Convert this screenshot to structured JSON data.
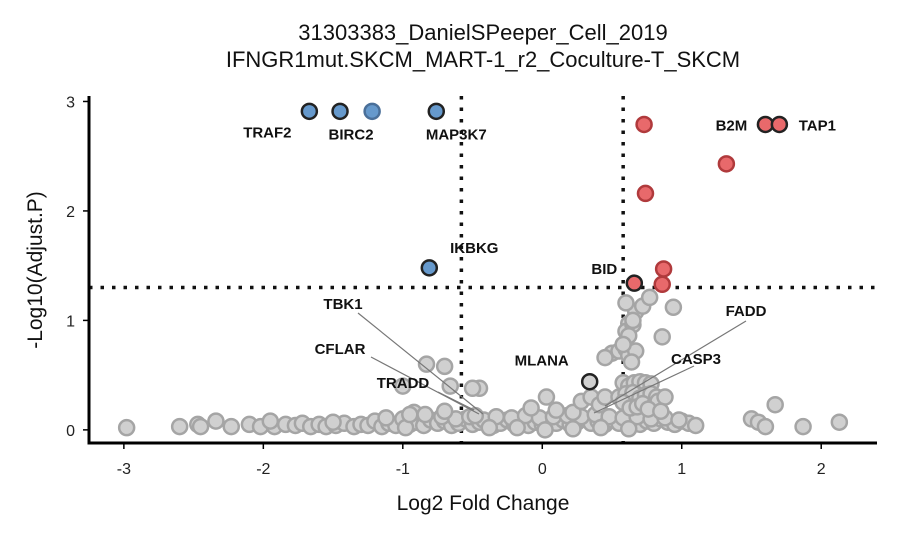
{
  "chart_data": {
    "type": "scatter",
    "title": [
      "31303383_DanielSPeeper_Cell_2019",
      "IFNGR1mut.SKCM_MART-1_r2_Coculture-T_SKCM"
    ],
    "xlabel": "Log2 Fold Change",
    "ylabel": "-Log10(Adjust.P)",
    "xlim": [
      -3.25,
      2.4
    ],
    "ylim": [
      -0.12,
      3.05
    ],
    "x_ticks": [
      -3,
      -2,
      -1,
      0,
      1,
      2
    ],
    "y_ticks": [
      0,
      1,
      2,
      3
    ],
    "thresholds": {
      "x": [
        -0.58,
        0.58
      ],
      "y": 1.3
    },
    "colors": {
      "down": "#6699cc",
      "up": "#e8696b",
      "ns": "#d0d0d0",
      "ns_edge": "#a5a5a5",
      "highlight_edge": "#222222",
      "threshold": "#111111"
    },
    "significant_down": [
      {
        "x": -1.67,
        "y": 2.91,
        "gene": "TRAF2"
      },
      {
        "x": -1.45,
        "y": 2.91,
        "gene": "BIRC2"
      },
      {
        "x": -1.22,
        "y": 2.91,
        "gene": ""
      },
      {
        "x": -0.76,
        "y": 2.91,
        "gene": "MAP3K7"
      },
      {
        "x": -0.81,
        "y": 1.48,
        "gene": "IKBKG"
      }
    ],
    "significant_up": [
      {
        "x": 0.73,
        "y": 2.79,
        "gene": ""
      },
      {
        "x": 1.32,
        "y": 2.43,
        "gene": ""
      },
      {
        "x": 0.74,
        "y": 2.16,
        "gene": ""
      },
      {
        "x": 1.6,
        "y": 2.79,
        "gene": "B2M"
      },
      {
        "x": 1.7,
        "y": 2.79,
        "gene": "TAP1"
      },
      {
        "x": 0.66,
        "y": 1.34,
        "gene": "BID"
      },
      {
        "x": 0.87,
        "y": 1.47,
        "gene": ""
      },
      {
        "x": 0.86,
        "y": 1.33,
        "gene": ""
      }
    ],
    "highlighted_ns": [
      {
        "x": 0.34,
        "y": 0.44,
        "gene": "MLANA"
      }
    ],
    "not_significant": [
      [
        -2.98,
        0.02
      ],
      [
        -2.6,
        0.03
      ],
      [
        -2.47,
        0.05
      ],
      [
        -2.34,
        0.08
      ],
      [
        -2.23,
        0.03
      ],
      [
        -2.1,
        0.05
      ],
      [
        -2.02,
        0.03
      ],
      [
        -1.92,
        0.03
      ],
      [
        -1.84,
        0.05
      ],
      [
        -1.77,
        0.04
      ],
      [
        -1.72,
        0.06
      ],
      [
        -1.66,
        0.03
      ],
      [
        -1.6,
        0.05
      ],
      [
        -1.55,
        0.03
      ],
      [
        -1.48,
        0.04
      ],
      [
        -1.42,
        0.06
      ],
      [
        -1.35,
        0.03
      ],
      [
        -1.3,
        0.05
      ],
      [
        -1.25,
        0.04
      ],
      [
        -1.2,
        0.08
      ],
      [
        -1.15,
        0.03
      ],
      [
        -1.1,
        0.06
      ],
      [
        -1.05,
        0.04
      ],
      [
        -1.0,
        0.1
      ],
      [
        -0.95,
        0.05
      ],
      [
        -0.9,
        0.07
      ],
      [
        -0.85,
        0.04
      ],
      [
        -0.8,
        0.09
      ],
      [
        -0.75,
        0.06
      ],
      [
        -0.7,
        0.08
      ],
      [
        -0.65,
        0.04
      ],
      [
        -0.6,
        0.06
      ],
      [
        -0.55,
        0.1
      ],
      [
        -0.5,
        0.05
      ],
      [
        -0.45,
        0.07
      ],
      [
        -0.4,
        0.08
      ],
      [
        -0.35,
        0.04
      ],
      [
        -0.3,
        0.06
      ],
      [
        -0.25,
        0.09
      ],
      [
        -0.2,
        0.05
      ],
      [
        -0.15,
        0.08
      ],
      [
        -0.1,
        0.04
      ],
      [
        -0.05,
        0.07
      ],
      [
        0.0,
        0.05
      ],
      [
        0.05,
        0.08
      ],
      [
        0.1,
        0.06
      ],
      [
        0.15,
        0.09
      ],
      [
        0.2,
        0.05
      ],
      [
        0.25,
        0.07
      ],
      [
        0.3,
        0.1
      ],
      [
        0.35,
        0.06
      ],
      [
        0.4,
        0.08
      ],
      [
        0.45,
        0.05
      ],
      [
        0.5,
        0.09
      ],
      [
        0.55,
        0.06
      ],
      [
        0.6,
        0.1
      ],
      [
        0.65,
        0.07
      ],
      [
        0.7,
        0.05
      ],
      [
        0.75,
        0.08
      ],
      [
        0.8,
        0.06
      ],
      [
        0.85,
        0.1
      ],
      [
        0.9,
        0.07
      ],
      [
        0.95,
        0.05
      ],
      [
        1.0,
        0.08
      ],
      [
        1.05,
        0.06
      ],
      [
        1.1,
        0.04
      ],
      [
        1.5,
        0.1
      ],
      [
        1.55,
        0.07
      ],
      [
        1.6,
        0.03
      ],
      [
        1.67,
        0.23
      ],
      [
        1.87,
        0.03
      ],
      [
        2.13,
        0.07
      ],
      [
        -2.45,
        0.03
      ],
      [
        -1.95,
        0.08
      ],
      [
        -1.5,
        0.07
      ],
      [
        -1.12,
        0.11
      ],
      [
        -0.98,
        0.02
      ],
      [
        -0.72,
        0.12
      ],
      [
        -0.62,
        0.1
      ],
      [
        -0.52,
        0.12
      ],
      [
        -0.42,
        0.09
      ],
      [
        -0.33,
        0.12
      ],
      [
        -0.22,
        0.11
      ],
      [
        -0.12,
        0.13
      ],
      [
        -0.02,
        0.11
      ],
      [
        0.08,
        0.12
      ],
      [
        0.18,
        0.13
      ],
      [
        0.28,
        0.12
      ],
      [
        0.38,
        0.14
      ],
      [
        0.48,
        0.12
      ],
      [
        0.58,
        0.11
      ],
      [
        0.68,
        0.12
      ],
      [
        0.78,
        0.1
      ],
      [
        0.88,
        0.11
      ],
      [
        0.98,
        0.09
      ],
      [
        -0.38,
        0.02
      ],
      [
        -0.18,
        0.02
      ],
      [
        0.02,
        0.0
      ],
      [
        0.22,
        0.01
      ],
      [
        0.42,
        0.02
      ],
      [
        0.62,
        0.01
      ],
      [
        -0.83,
        0.6
      ],
      [
        -0.7,
        0.58
      ],
      [
        -1.0,
        0.4
      ],
      [
        -0.66,
        0.4
      ],
      [
        -0.45,
        0.38
      ],
      [
        -0.5,
        0.38
      ],
      [
        -0.92,
        0.16
      ],
      [
        -0.95,
        0.14
      ],
      [
        -0.84,
        0.14
      ],
      [
        -0.7,
        0.17
      ],
      [
        -0.48,
        0.13
      ],
      [
        0.03,
        0.3
      ],
      [
        -0.08,
        0.2
      ],
      [
        0.1,
        0.18
      ],
      [
        0.22,
        0.16
      ],
      [
        0.28,
        0.26
      ],
      [
        0.35,
        0.3
      ],
      [
        0.41,
        0.23
      ],
      [
        0.45,
        0.3
      ],
      [
        0.5,
        0.7
      ],
      [
        0.55,
        0.72
      ],
      [
        0.6,
        0.74
      ],
      [
        0.62,
        0.68
      ],
      [
        0.67,
        0.72
      ],
      [
        0.58,
        0.43
      ],
      [
        0.62,
        0.4
      ],
      [
        0.66,
        0.43
      ],
      [
        0.7,
        0.44
      ],
      [
        0.74,
        0.43
      ],
      [
        0.78,
        0.42
      ],
      [
        0.55,
        0.3
      ],
      [
        0.6,
        0.33
      ],
      [
        0.65,
        0.34
      ],
      [
        0.7,
        0.29
      ],
      [
        0.74,
        0.32
      ],
      [
        0.78,
        0.33
      ],
      [
        0.82,
        0.3
      ],
      [
        0.58,
        0.25
      ],
      [
        0.63,
        0.2
      ],
      [
        0.68,
        0.21
      ],
      [
        0.72,
        0.24
      ],
      [
        0.8,
        0.22
      ],
      [
        0.83,
        0.26
      ],
      [
        0.88,
        0.3
      ],
      [
        0.76,
        0.19
      ],
      [
        0.85,
        0.17
      ],
      [
        0.45,
        0.66
      ],
      [
        0.62,
        0.97
      ],
      [
        0.6,
        0.9
      ],
      [
        0.65,
        0.96
      ],
      [
        0.67,
        1.08
      ],
      [
        0.72,
        1.13
      ],
      [
        0.6,
        1.16
      ],
      [
        0.65,
        1.0
      ],
      [
        0.77,
        1.21
      ],
      [
        0.86,
        0.85
      ],
      [
        0.94,
        1.12
      ],
      [
        0.62,
        0.86
      ],
      [
        0.58,
        0.78
      ],
      [
        0.64,
        0.62
      ]
    ]
  }
}
